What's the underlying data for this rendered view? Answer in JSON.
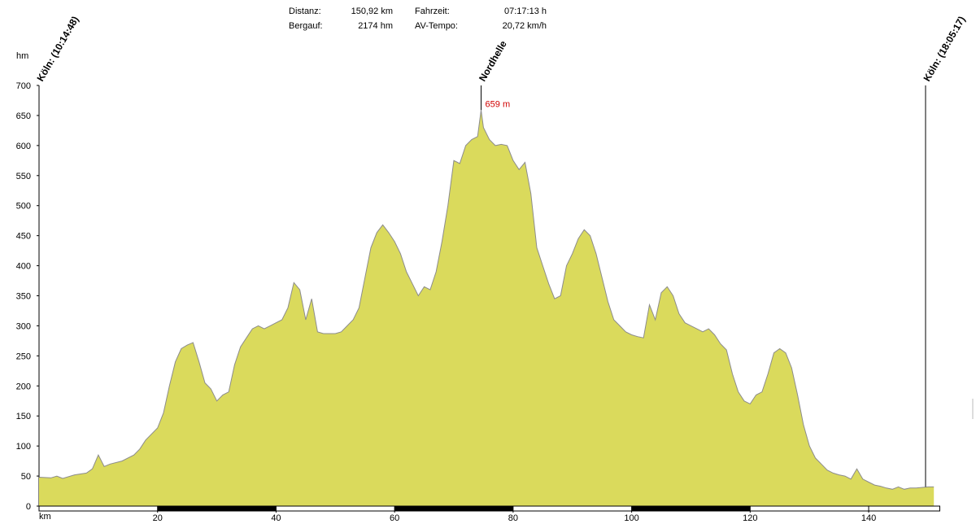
{
  "chart_data": {
    "type": "area",
    "stats": [
      {
        "label": "Distanz:",
        "value": "150,92 km"
      },
      {
        "label": "Fahrzeit:",
        "value": "07:17:13 h"
      },
      {
        "label": "Bergauf:",
        "value": "2174 hm"
      },
      {
        "label": "AV-Tempo:",
        "value": "20,72 km/h"
      }
    ],
    "y_label": "hm",
    "x_label": "km",
    "color": "#dada5c",
    "line_color": "#8c8c8c",
    "xlim": [
      0,
      152
    ],
    "ylim": [
      0,
      700
    ],
    "xticks": [
      20,
      40,
      60,
      80,
      100,
      120,
      140
    ],
    "yticks": [
      0,
      50,
      100,
      150,
      200,
      250,
      300,
      350,
      400,
      450,
      500,
      550,
      600,
      650,
      700
    ],
    "x": [
      0,
      2,
      3,
      4,
      6,
      8,
      9,
      10,
      11,
      12,
      14,
      16,
      17,
      18,
      20,
      21,
      22,
      23,
      24,
      25,
      26,
      27,
      28,
      29,
      30,
      31,
      32,
      33,
      34,
      35,
      36,
      37,
      38,
      39,
      40,
      41,
      42,
      43,
      44,
      45,
      46,
      47,
      48,
      50,
      51,
      52,
      53,
      54,
      55,
      56,
      57,
      58,
      59,
      60,
      61,
      62,
      63,
      64,
      65,
      66,
      67,
      68,
      69,
      70,
      71,
      72,
      73,
      74,
      74.6,
      75,
      76,
      77,
      78,
      79,
      80,
      81,
      82,
      83,
      84,
      85,
      86,
      87,
      88,
      89,
      90,
      91,
      92,
      93,
      94,
      95,
      96,
      97,
      98,
      99,
      100,
      101,
      102,
      103,
      104,
      105,
      106,
      107,
      108,
      109,
      110,
      111,
      112,
      113,
      114,
      115,
      116,
      117,
      118,
      119,
      120,
      121,
      122,
      123,
      124,
      125,
      126,
      127,
      128,
      129,
      130,
      131,
      132,
      133,
      134,
      135,
      136,
      137,
      138,
      139,
      140,
      141,
      142,
      143,
      144,
      145,
      146,
      147,
      148,
      150,
      151
    ],
    "values": [
      48,
      47,
      50,
      46,
      52,
      55,
      62,
      85,
      66,
      70,
      75,
      85,
      95,
      110,
      130,
      155,
      200,
      240,
      262,
      268,
      272,
      240,
      205,
      195,
      175,
      185,
      190,
      235,
      265,
      280,
      295,
      300,
      295,
      300,
      305,
      310,
      330,
      372,
      360,
      310,
      345,
      290,
      287,
      287,
      290,
      300,
      310,
      330,
      380,
      430,
      455,
      468,
      455,
      440,
      420,
      390,
      370,
      350,
      365,
      360,
      390,
      440,
      500,
      575,
      570,
      600,
      610,
      615,
      659,
      630,
      610,
      600,
      602,
      600,
      575,
      560,
      572,
      520,
      430,
      400,
      370,
      345,
      350,
      400,
      420,
      445,
      460,
      450,
      420,
      380,
      340,
      310,
      300,
      290,
      285,
      282,
      280,
      335,
      310,
      355,
      365,
      350,
      320,
      305,
      300,
      295,
      290,
      295,
      285,
      270,
      260,
      220,
      190,
      175,
      170,
      185,
      190,
      220,
      255,
      262,
      255,
      230,
      185,
      135,
      100,
      80,
      70,
      60,
      55,
      52,
      50,
      45,
      62,
      45,
      40,
      35,
      33,
      30,
      28,
      32,
      28,
      30,
      30,
      32,
      32
    ],
    "markers": [
      {
        "label": "Köln: (10:14:48)",
        "x": 0
      },
      {
        "label": "Nordhelle",
        "x": 74.6,
        "value": 659,
        "value_label": "659 m"
      },
      {
        "label": "Köln: (18:05:17)",
        "x": 149.6
      }
    ]
  }
}
